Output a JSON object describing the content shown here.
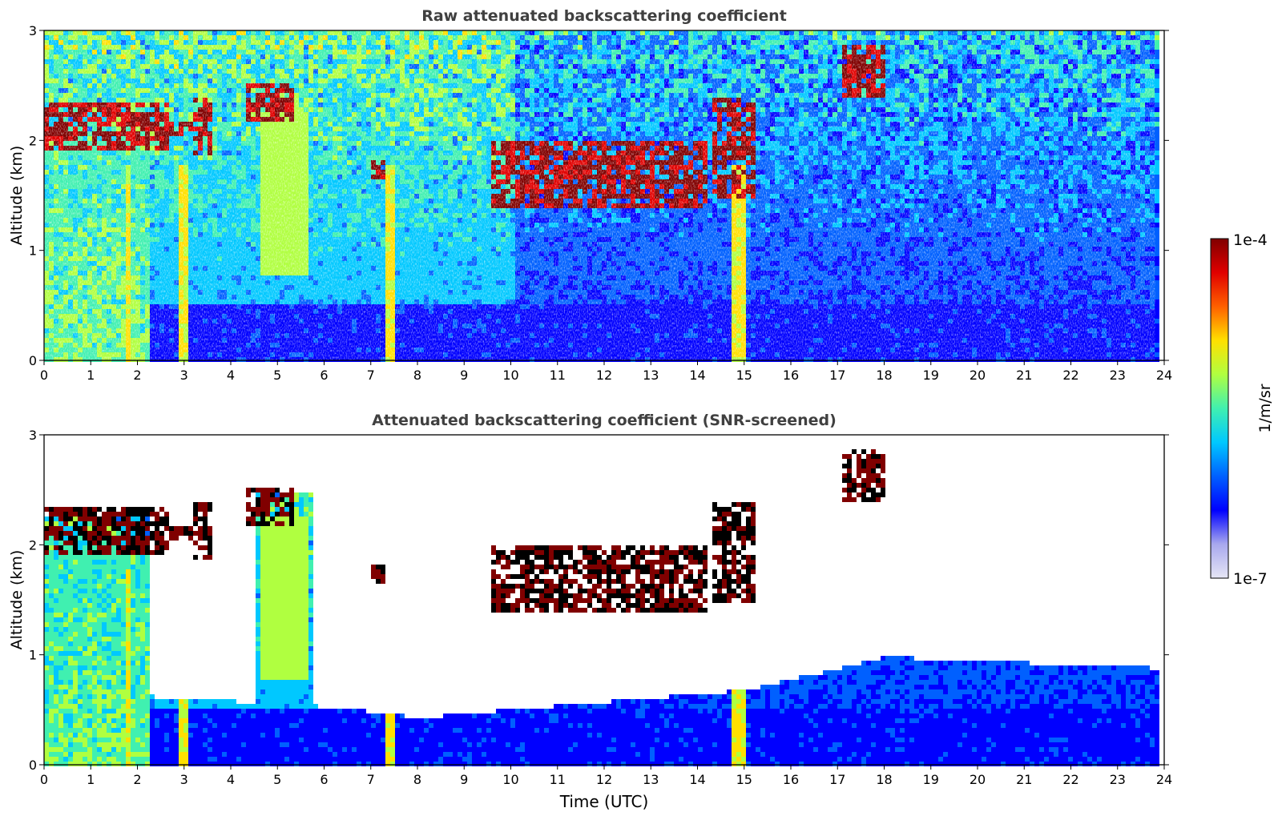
{
  "chart_data": [
    {
      "type": "heatmap",
      "title": "Raw attenuated backscattering coefficient",
      "xlabel": "",
      "ylabel": "Altitude (km)",
      "xlim": [
        0,
        24
      ],
      "ylim": [
        0,
        3
      ],
      "x_ticks": [
        "0",
        "1",
        "2",
        "3",
        "4",
        "5",
        "6",
        "7",
        "8",
        "9",
        "10",
        "11",
        "12",
        "13",
        "14",
        "15",
        "16",
        "17",
        "18",
        "19",
        "20",
        "21",
        "22",
        "23",
        "24"
      ],
      "y_ticks": [
        "0",
        "1",
        "2",
        "3"
      ],
      "x_data_end": 23.8,
      "grid": false,
      "cloud_layers": [
        {
          "name": "elevated layer",
          "t_start": 0.0,
          "t_end": 2.6,
          "base_km": 1.95,
          "top_km": 2.35
        },
        {
          "name": "layer segment",
          "t_start": 2.6,
          "t_end": 3.1,
          "base_km": 2.05,
          "top_km": 2.2
        },
        {
          "name": "patchy clouds",
          "t_start": 3.1,
          "t_end": 3.6,
          "base_km": 1.9,
          "top_km": 2.4
        },
        {
          "name": "cloud",
          "t_start": 4.3,
          "t_end": 5.3,
          "base_km": 2.2,
          "top_km": 2.55
        },
        {
          "name": "cloud",
          "t_start": 7.0,
          "t_end": 7.3,
          "base_km": 1.65,
          "top_km": 1.85
        },
        {
          "name": "cloud band",
          "t_start": 9.5,
          "t_end": 14.2,
          "base_km": 1.4,
          "top_km": 2.0
        },
        {
          "name": "cloud",
          "t_start": 14.3,
          "t_end": 15.2,
          "base_km": 1.5,
          "top_km": 2.4
        },
        {
          "name": "high cloud",
          "t_start": 17.0,
          "t_end": 18.0,
          "base_km": 2.4,
          "top_km": 2.9
        }
      ],
      "boundary_layer_top_km": 0.55,
      "precipitation_streaks_utc": [
        1.75,
        2.95,
        7.35,
        14.7,
        14.9
      ]
    },
    {
      "type": "heatmap",
      "title": "Attenuated backscattering coefficient (SNR-screened)",
      "xlabel": "Time (UTC)",
      "ylabel": "Altitude (km)",
      "xlim": [
        0,
        24
      ],
      "ylim": [
        0,
        3
      ],
      "x_ticks": [
        "0",
        "1",
        "2",
        "3",
        "4",
        "5",
        "6",
        "7",
        "8",
        "9",
        "10",
        "11",
        "12",
        "13",
        "14",
        "15",
        "16",
        "17",
        "18",
        "19",
        "20",
        "21",
        "22",
        "23",
        "24"
      ],
      "y_ticks": [
        "0",
        "1",
        "2",
        "3"
      ],
      "x_data_end": 23.8,
      "grid": false,
      "screened_top_km": [
        {
          "t": 0.0,
          "km": 2.3
        },
        {
          "t": 2.0,
          "km": 0.65
        },
        {
          "t": 4.0,
          "km": 0.6
        },
        {
          "t": 6.0,
          "km": 0.55
        },
        {
          "t": 8.0,
          "km": 0.45
        },
        {
          "t": 15.0,
          "km": 0.7
        },
        {
          "t": 18.0,
          "km": 1.0
        },
        {
          "t": 23.8,
          "km": 0.9
        }
      ]
    }
  ],
  "colorbar": {
    "label": "1/m/sr",
    "max_label": "1e-4",
    "min_label": "1e-7",
    "colormap": [
      "#e6e6f5",
      "#a8a8ee",
      "#0000ff",
      "#0060ff",
      "#00c8ff",
      "#40f0b0",
      "#b0ff40",
      "#ffe000",
      "#ff6000",
      "#e00000",
      "#800000"
    ]
  }
}
